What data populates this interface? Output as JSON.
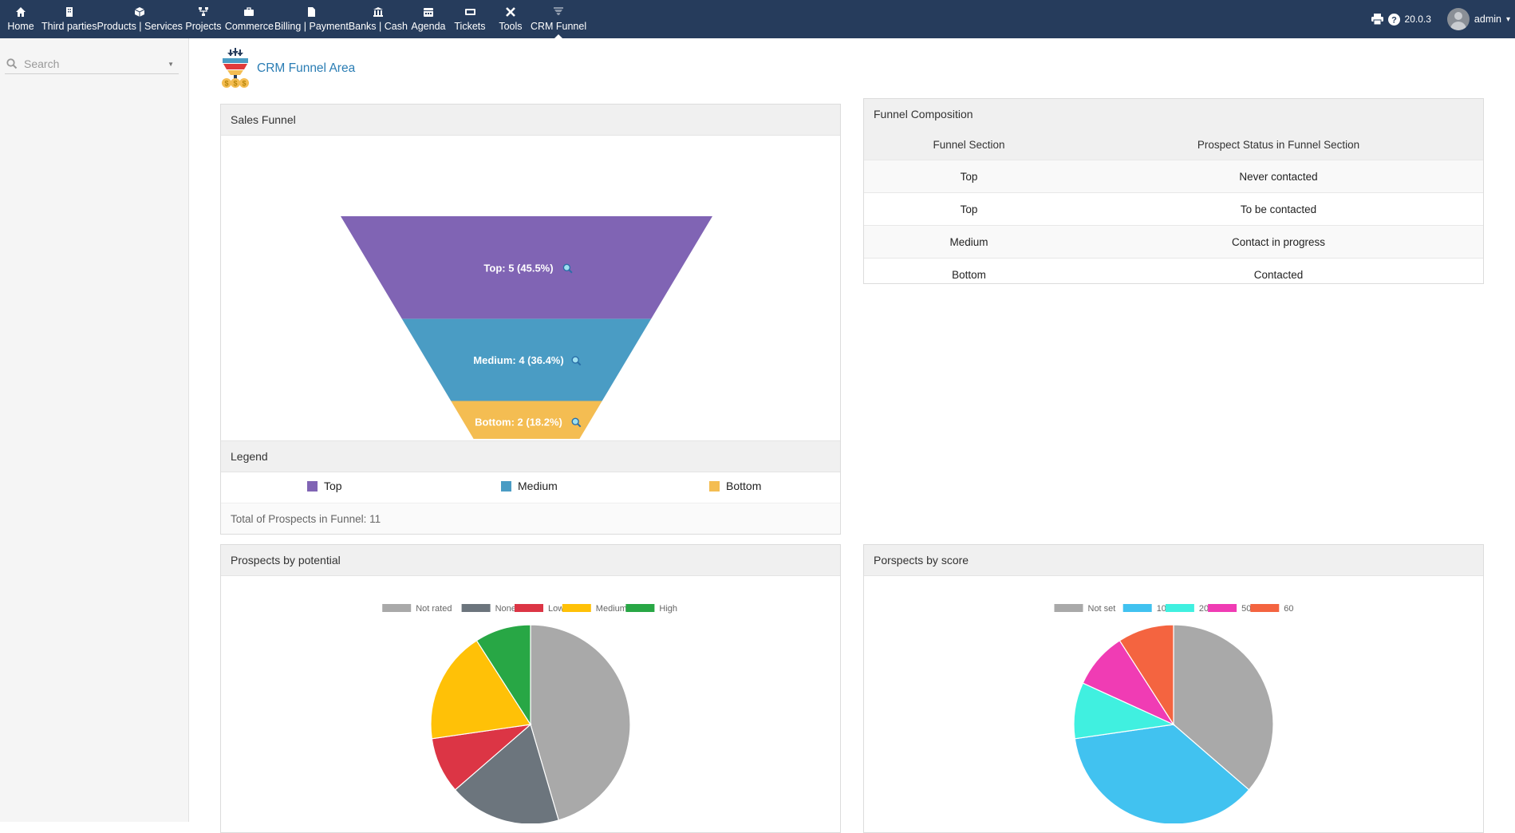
{
  "nav": [
    {
      "label": "Home",
      "icon": "home-icon"
    },
    {
      "label": "Third parties",
      "icon": "building-icon"
    },
    {
      "label": "Products | Services",
      "icon": "cube-icon"
    },
    {
      "label": "Projects",
      "icon": "sitemap-icon"
    },
    {
      "label": "Commerce",
      "icon": "briefcase-icon"
    },
    {
      "label": "Billing | Payment",
      "icon": "file-icon"
    },
    {
      "label": "Banks | Cash",
      "icon": "bank-icon"
    },
    {
      "label": "Agenda",
      "icon": "calendar-icon"
    },
    {
      "label": "Tickets",
      "icon": "ticket-icon"
    },
    {
      "label": "Tools",
      "icon": "tools-icon"
    },
    {
      "label": "CRM Funnel",
      "icon": "funnel-icon",
      "active": true
    }
  ],
  "topright": {
    "version": "20.0.3",
    "user": "admin"
  },
  "sidebar": {
    "search_placeholder": "Search"
  },
  "page": {
    "title": "CRM Funnel Area"
  },
  "sales_funnel": {
    "title": "Sales Funnel",
    "legend_title": "Legend",
    "total_text": "Total of Prospects in Funnel: 11"
  },
  "funnel_composition": {
    "title": "Funnel Composition",
    "headers": [
      "Funnel Section",
      "Prospect Status in Funnel Section"
    ],
    "rows": [
      [
        "Top",
        "Never contacted"
      ],
      [
        "Top",
        "To be contacted"
      ],
      [
        "Medium",
        "Contact in progress"
      ],
      [
        "Bottom",
        "Contacted"
      ]
    ]
  },
  "potential_panel": {
    "title": "Prospects by potential"
  },
  "score_panel": {
    "title": "Porspects by score"
  },
  "chart_data": [
    {
      "type": "funnel",
      "categories": [
        "Top",
        "Medium",
        "Bottom"
      ],
      "values": [
        5,
        4,
        2
      ],
      "labels": [
        "Top: 5 (45.5%)",
        "Medium: 4 (36.4%)",
        "Bottom: 2 (18.2%)"
      ],
      "colors": [
        "#8064b4",
        "#4a9cc4",
        "#f4bd52"
      ]
    },
    {
      "type": "pie",
      "categories": [
        "Not rated",
        "None",
        "Low",
        "Medium",
        "High"
      ],
      "values": [
        5,
        2,
        1,
        2,
        1
      ],
      "colors": [
        "#a9a9a9",
        "#6c757d",
        "#dc3545",
        "#ffc107",
        "#28a745"
      ],
      "legend": "top"
    },
    {
      "type": "pie",
      "categories": [
        "Not set",
        "10",
        "20",
        "50",
        "60"
      ],
      "values": [
        4,
        4,
        1,
        1,
        1
      ],
      "colors": [
        "#a9a9a9",
        "#41c2f0",
        "#40f0e0",
        "#f03cb4",
        "#f46440"
      ],
      "legend": "top"
    }
  ]
}
